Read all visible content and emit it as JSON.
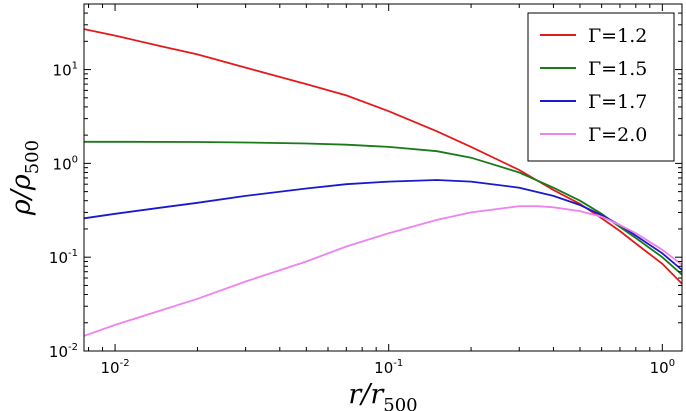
{
  "chart_data": {
    "type": "line",
    "xscale": "log",
    "yscale": "log",
    "xlim": [
      0.0077,
      1.18
    ],
    "ylim": [
      0.01,
      50
    ],
    "xlabel": "r/r500",
    "xlabel_main": "r/r",
    "xlabel_sub": "500",
    "ylabel": "ρ/ρ500",
    "ylabel_main": "ρ/ρ",
    "ylabel_sub": "500",
    "grid": false,
    "legend_position": "top-right",
    "x_ticks": [
      {
        "value": 0.01,
        "base": "10",
        "exp": "-2"
      },
      {
        "value": 0.1,
        "base": "10",
        "exp": "-1"
      },
      {
        "value": 1,
        "base": "10",
        "exp": "0"
      }
    ],
    "y_ticks": [
      {
        "value": 0.01,
        "base": "10",
        "exp": "-2"
      },
      {
        "value": 0.1,
        "base": "10",
        "exp": "-1"
      },
      {
        "value": 1,
        "base": "10",
        "exp": "0"
      },
      {
        "value": 10,
        "base": "10",
        "exp": "1"
      }
    ],
    "series": [
      {
        "name": "Γ=1.2",
        "color": "#e31a1c",
        "points": [
          [
            0.0077,
            27
          ],
          [
            0.01,
            23
          ],
          [
            0.015,
            17.5
          ],
          [
            0.02,
            14.5
          ],
          [
            0.03,
            10.5
          ],
          [
            0.05,
            7
          ],
          [
            0.07,
            5.3
          ],
          [
            0.1,
            3.6
          ],
          [
            0.15,
            2.2
          ],
          [
            0.2,
            1.5
          ],
          [
            0.3,
            0.85
          ],
          [
            0.4,
            0.52
          ],
          [
            0.5,
            0.37
          ],
          [
            0.6,
            0.26
          ],
          [
            0.7,
            0.19
          ],
          [
            0.8,
            0.14
          ],
          [
            1.0,
            0.085
          ],
          [
            1.18,
            0.052
          ]
        ]
      },
      {
        "name": "Γ=1.5",
        "color": "#1a7a1a",
        "points": [
          [
            0.0077,
            1.7
          ],
          [
            0.01,
            1.7
          ],
          [
            0.02,
            1.69
          ],
          [
            0.03,
            1.67
          ],
          [
            0.05,
            1.63
          ],
          [
            0.07,
            1.58
          ],
          [
            0.1,
            1.5
          ],
          [
            0.15,
            1.35
          ],
          [
            0.2,
            1.15
          ],
          [
            0.3,
            0.8
          ],
          [
            0.4,
            0.55
          ],
          [
            0.5,
            0.4
          ],
          [
            0.6,
            0.29
          ],
          [
            0.7,
            0.21
          ],
          [
            0.8,
            0.16
          ],
          [
            1.0,
            0.1
          ],
          [
            1.18,
            0.065
          ]
        ]
      },
      {
        "name": "Γ=1.7",
        "color": "#1a1acc",
        "points": [
          [
            0.0077,
            0.26
          ],
          [
            0.01,
            0.29
          ],
          [
            0.015,
            0.34
          ],
          [
            0.02,
            0.38
          ],
          [
            0.03,
            0.45
          ],
          [
            0.05,
            0.54
          ],
          [
            0.07,
            0.6
          ],
          [
            0.1,
            0.64
          ],
          [
            0.15,
            0.665
          ],
          [
            0.2,
            0.64
          ],
          [
            0.3,
            0.55
          ],
          [
            0.4,
            0.45
          ],
          [
            0.5,
            0.36
          ],
          [
            0.6,
            0.28
          ],
          [
            0.7,
            0.22
          ],
          [
            0.8,
            0.17
          ],
          [
            1.0,
            0.11
          ],
          [
            1.18,
            0.073
          ]
        ]
      },
      {
        "name": "Γ=2.0",
        "color": "#ee82ee",
        "points": [
          [
            0.0077,
            0.0145
          ],
          [
            0.01,
            0.019
          ],
          [
            0.02,
            0.036
          ],
          [
            0.03,
            0.055
          ],
          [
            0.05,
            0.09
          ],
          [
            0.07,
            0.13
          ],
          [
            0.1,
            0.18
          ],
          [
            0.15,
            0.25
          ],
          [
            0.2,
            0.3
          ],
          [
            0.3,
            0.35
          ],
          [
            0.35,
            0.35
          ],
          [
            0.4,
            0.34
          ],
          [
            0.5,
            0.31
          ],
          [
            0.6,
            0.27
          ],
          [
            0.7,
            0.22
          ],
          [
            0.8,
            0.18
          ],
          [
            1.0,
            0.12
          ],
          [
            1.18,
            0.083
          ]
        ]
      }
    ]
  }
}
